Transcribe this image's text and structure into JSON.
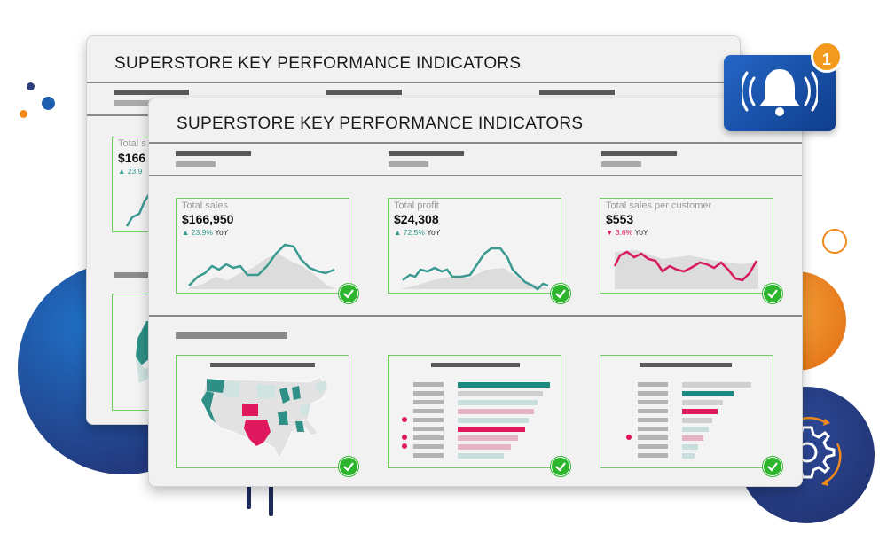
{
  "back_window": {
    "title": "SUPERSTORE KEY PERFORMANCE INDICATORS",
    "partial_label": "Total s",
    "partial_value": "$166",
    "partial_delta": "23.9"
  },
  "front_window": {
    "title": "SUPERSTORE KEY PERFORMANCE INDICATORS",
    "kpis": [
      {
        "label": "Total sales",
        "value": "$166,950",
        "delta": "23.9%",
        "delta_suffix": "YoY",
        "direction": "up",
        "color": "#3a9a92"
      },
      {
        "label": "Total profit",
        "value": "$24,308",
        "delta": "72.5%",
        "delta_suffix": "YoY",
        "direction": "up",
        "color": "#3a9a92"
      },
      {
        "label": "Total sales per customer",
        "value": "$553",
        "delta": "3.6%",
        "delta_suffix": "YoY",
        "direction": "down",
        "color": "#d81b60"
      }
    ]
  },
  "notification": {
    "icon": "bell-icon",
    "count": "1"
  },
  "colors": {
    "teal": "#1b8a80",
    "pink": "#e0195e",
    "check_green": "#2db52d",
    "card_border": "#6fcf5f",
    "navy": "#2c3e7a",
    "orange": "#f08a1c"
  }
}
